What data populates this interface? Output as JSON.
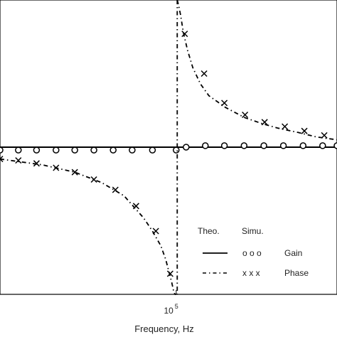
{
  "chart_data": {
    "type": "line",
    "title": "",
    "xlabel": "Frequency, Hz",
    "ylabel": "",
    "x_scale": "log",
    "xlim": [
      30000,
      300000
    ],
    "ylim": [
      -1,
      1
    ],
    "x_tick_labels": [
      {
        "x": 100000,
        "base": "10",
        "exp": "5"
      }
    ],
    "grid": false,
    "legend": {
      "placement": "bottom-right",
      "headers": [
        "Theo.",
        "Simu."
      ],
      "entries": [
        {
          "name": "Gain",
          "theo_symbol": "solid",
          "simu_symbol": "o o o"
        },
        {
          "name": "Phase",
          "theo_symbol": "dash-dot",
          "simu_symbol": "x x x"
        }
      ]
    },
    "series": [
      {
        "name": "Gain",
        "role": "theory",
        "line_style": "solid",
        "color": "#000000",
        "x": [
          30000,
          100000,
          300000
        ],
        "y": [
          0.0,
          0.0,
          0.0
        ]
      },
      {
        "name": "Gain",
        "role": "simulation",
        "marker": "circle",
        "color": "#000000",
        "x": [
          30000,
          34000,
          38500,
          44000,
          50000,
          57000,
          65000,
          74000,
          85000,
          100000,
          107000,
          122000,
          139000,
          159000,
          182000,
          208000,
          238000,
          272000,
          300000
        ],
        "y": [
          -0.02,
          -0.02,
          -0.02,
          -0.02,
          -0.02,
          -0.02,
          -0.02,
          -0.02,
          -0.02,
          -0.02,
          0.0,
          0.01,
          0.01,
          0.01,
          0.01,
          0.01,
          0.01,
          0.01,
          0.01
        ]
      },
      {
        "name": "Phase",
        "role": "theory",
        "line_style": "dash-dot",
        "color": "#000000",
        "x": [
          30000,
          40000,
          50000,
          60000,
          70000,
          80000,
          85000,
          90000,
          93000,
          95000,
          97000,
          98500,
          99300,
          100000,
          100700,
          101500,
          103000,
          105000,
          108000,
          112000,
          118000,
          125000,
          140000,
          160000,
          180000,
          200000,
          230000,
          260000,
          300000
        ],
        "y": [
          -0.08,
          -0.12,
          -0.17,
          -0.24,
          -0.33,
          -0.48,
          -0.57,
          -0.67,
          -0.76,
          -0.84,
          -0.92,
          -0.99,
          -1.0,
          -1.0,
          1.0,
          0.97,
          0.9,
          0.78,
          0.66,
          0.54,
          0.43,
          0.35,
          0.27,
          0.2,
          0.16,
          0.13,
          0.1,
          0.07,
          0.05
        ]
      },
      {
        "name": "Phase",
        "role": "simulation",
        "marker": "x",
        "color": "#000000",
        "x": [
          30000,
          34000,
          38500,
          44000,
          50000,
          57000,
          66000,
          76000,
          87000,
          96000,
          106000,
          121000,
          139000,
          160000,
          183000,
          210000,
          240000,
          275000
        ],
        "y": [
          -0.08,
          -0.09,
          -0.11,
          -0.14,
          -0.17,
          -0.22,
          -0.29,
          -0.4,
          -0.57,
          -0.86,
          0.77,
          0.5,
          0.3,
          0.22,
          0.17,
          0.14,
          0.11,
          0.08
        ]
      }
    ]
  }
}
